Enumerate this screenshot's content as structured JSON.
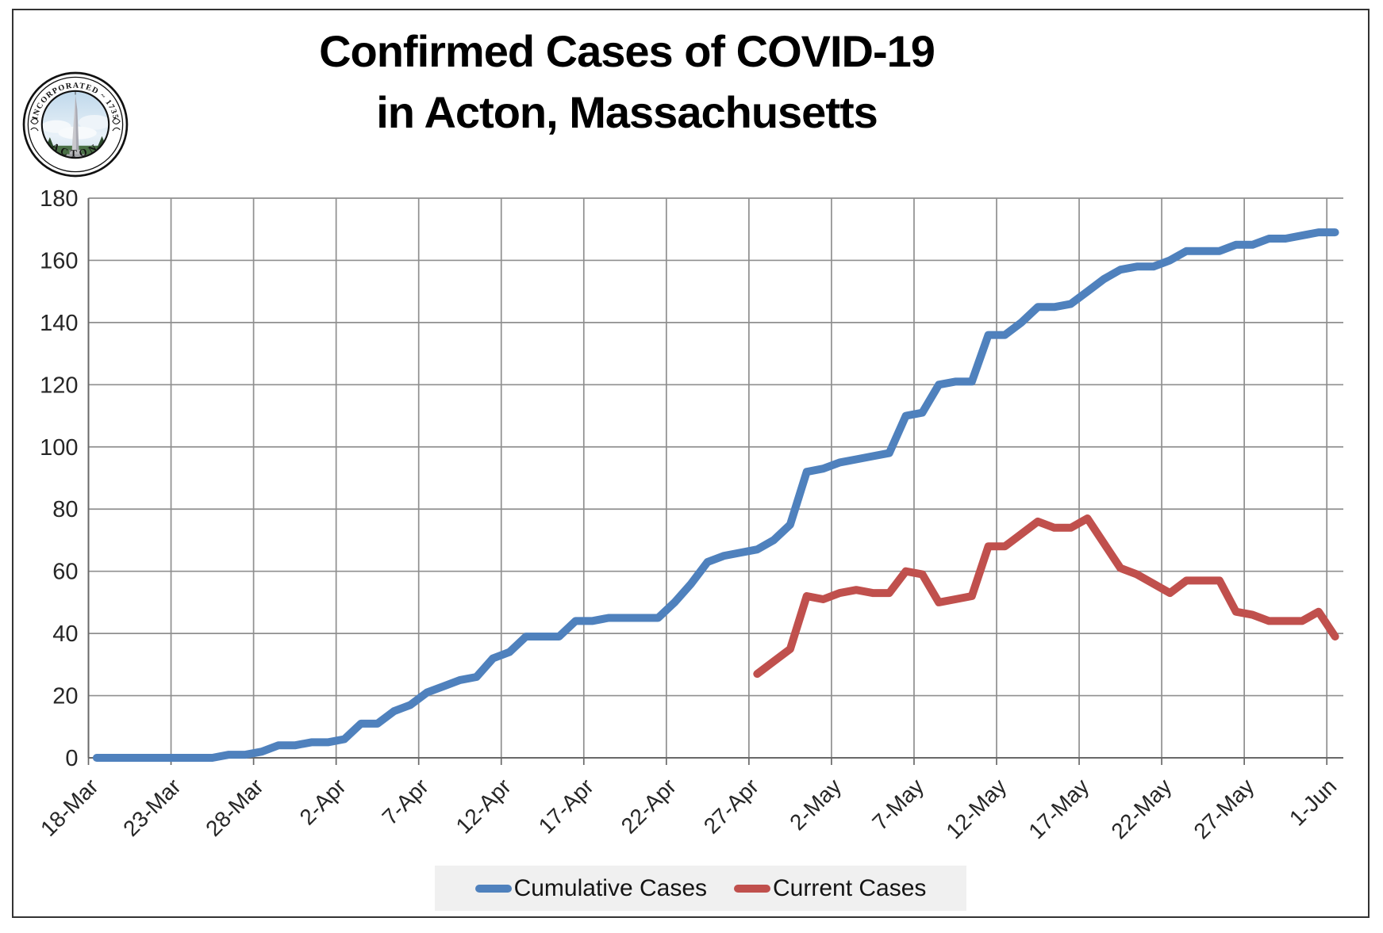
{
  "title": {
    "line1": "Confirmed Cases of COVID-19",
    "line2": "in Acton, Massachusetts"
  },
  "logo": {
    "top_text": "INCORPORATED ~ 1735",
    "bottom_text": "ACTON"
  },
  "legend": [
    {
      "label": "Cumulative Cases",
      "color": "#4F81BD"
    },
    {
      "label": "Current Cases",
      "color": "#C0504D"
    }
  ],
  "axes": {
    "y_ticks": [
      0,
      20,
      40,
      60,
      80,
      100,
      120,
      140,
      160,
      180
    ],
    "x_tick_labels": [
      "18-Mar",
      "23-Mar",
      "28-Mar",
      "2-Apr",
      "7-Apr",
      "12-Apr",
      "17-Apr",
      "22-Apr",
      "27-Apr",
      "2-May",
      "7-May",
      "12-May",
      "17-May",
      "22-May",
      "27-May",
      "1-Jun"
    ]
  },
  "colors": {
    "cumulative": "#4F81BD",
    "current": "#C0504D",
    "gridline": "#8f8f8f",
    "legend_bg": "#f0f0f0"
  },
  "chart_data": {
    "type": "line",
    "title": "Confirmed Cases of COVID-19 in Acton, Massachusetts",
    "xlabel": "",
    "ylabel": "",
    "ylim": [
      0,
      180
    ],
    "grid": true,
    "legend_position": "bottom",
    "x": [
      "18-Mar",
      "19-Mar",
      "20-Mar",
      "21-Mar",
      "22-Mar",
      "23-Mar",
      "24-Mar",
      "25-Mar",
      "26-Mar",
      "27-Mar",
      "28-Mar",
      "29-Mar",
      "30-Mar",
      "31-Mar",
      "1-Apr",
      "2-Apr",
      "3-Apr",
      "4-Apr",
      "5-Apr",
      "6-Apr",
      "7-Apr",
      "8-Apr",
      "9-Apr",
      "10-Apr",
      "11-Apr",
      "12-Apr",
      "13-Apr",
      "14-Apr",
      "15-Apr",
      "16-Apr",
      "17-Apr",
      "18-Apr",
      "19-Apr",
      "20-Apr",
      "21-Apr",
      "22-Apr",
      "23-Apr",
      "24-Apr",
      "25-Apr",
      "26-Apr",
      "27-Apr",
      "28-Apr",
      "29-Apr",
      "30-Apr",
      "1-May",
      "2-May",
      "3-May",
      "4-May",
      "5-May",
      "6-May",
      "7-May",
      "8-May",
      "9-May",
      "10-May",
      "11-May",
      "12-May",
      "13-May",
      "14-May",
      "15-May",
      "16-May",
      "17-May",
      "18-May",
      "19-May",
      "20-May",
      "21-May",
      "22-May",
      "23-May",
      "24-May",
      "25-May",
      "26-May",
      "27-May",
      "28-May",
      "29-May",
      "30-May",
      "31-May",
      "1-Jun"
    ],
    "series": [
      {
        "name": "Cumulative Cases",
        "color": "#4F81BD",
        "values": [
          0,
          0,
          0,
          0,
          0,
          0,
          0,
          0,
          1,
          1,
          2,
          4,
          4,
          5,
          5,
          6,
          11,
          11,
          15,
          17,
          21,
          23,
          25,
          26,
          32,
          34,
          39,
          39,
          39,
          44,
          44,
          45,
          45,
          45,
          45,
          50,
          56,
          63,
          65,
          66,
          67,
          70,
          75,
          92,
          93,
          95,
          96,
          97,
          98,
          110,
          111,
          120,
          121,
          121,
          136,
          136,
          140,
          145,
          145,
          146,
          150,
          154,
          157,
          158,
          158,
          160,
          163,
          163,
          163,
          165,
          165,
          167,
          167,
          168,
          169,
          169
        ]
      },
      {
        "name": "Current Cases",
        "color": "#C0504D",
        "values": [
          null,
          null,
          null,
          null,
          null,
          null,
          null,
          null,
          null,
          null,
          null,
          null,
          null,
          null,
          null,
          null,
          null,
          null,
          null,
          null,
          null,
          null,
          null,
          null,
          null,
          null,
          null,
          null,
          null,
          null,
          null,
          null,
          null,
          null,
          null,
          null,
          null,
          null,
          null,
          null,
          27,
          31,
          35,
          52,
          51,
          53,
          54,
          53,
          53,
          60,
          59,
          50,
          51,
          52,
          68,
          68,
          72,
          76,
          74,
          74,
          77,
          69,
          61,
          59,
          56,
          53,
          57,
          57,
          57,
          47,
          46,
          44,
          44,
          44,
          47,
          39
        ]
      }
    ]
  }
}
